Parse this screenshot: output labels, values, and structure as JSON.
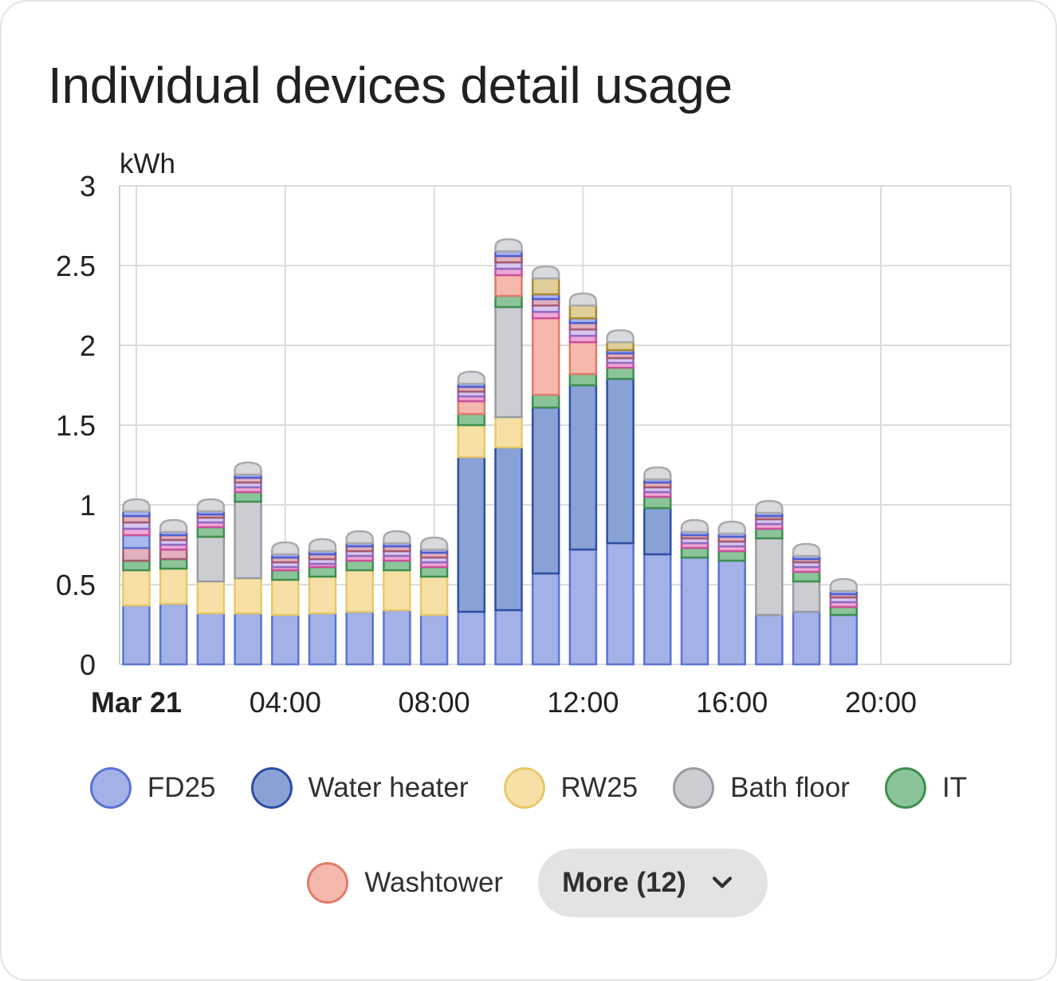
{
  "card": {
    "title": "Individual devices detail usage"
  },
  "chart_data": {
    "type": "bar",
    "stacked": true,
    "unit": "kWh",
    "ylim": [
      0,
      3
    ],
    "yticks": [
      "0",
      "0.5",
      "1",
      "1.5",
      "2",
      "2.5",
      "3"
    ],
    "xlim": [
      0,
      24
    ],
    "xticks": [
      {
        "hour": 0,
        "label": "Mar 21",
        "bold": true
      },
      {
        "hour": 4,
        "label": "04:00",
        "bold": false
      },
      {
        "hour": 8,
        "label": "08:00",
        "bold": false
      },
      {
        "hour": 12,
        "label": "12:00",
        "bold": false
      },
      {
        "hour": 16,
        "label": "16:00",
        "bold": false
      },
      {
        "hour": 20,
        "label": "20:00",
        "bold": false
      }
    ],
    "grid": true,
    "categories": [
      "00:00",
      "01:00",
      "02:00",
      "03:00",
      "04:00",
      "05:00",
      "06:00",
      "07:00",
      "08:00",
      "09:00",
      "10:00",
      "11:00",
      "12:00",
      "13:00",
      "14:00",
      "15:00",
      "16:00",
      "17:00",
      "18:00",
      "19:00"
    ],
    "series": [
      {
        "name": "FD25",
        "fill": "#a3b1e6",
        "stroke": "#5b73d4",
        "values": [
          0.37,
          0.38,
          0.32,
          0.32,
          0.31,
          0.32,
          0.33,
          0.34,
          0.31,
          0.33,
          0.34,
          0.57,
          0.72,
          0.76,
          0.69,
          0.67,
          0.65,
          0.31,
          0.33,
          0.31
        ]
      },
      {
        "name": "Water heater",
        "fill": "#88a2d6",
        "stroke": "#2f4ea3",
        "values": [
          0,
          0,
          0,
          0,
          0,
          0,
          0,
          0,
          0,
          0.97,
          1.02,
          1.04,
          1.03,
          1.03,
          0.29,
          0,
          0,
          0,
          0,
          0
        ]
      },
      {
        "name": "RW25",
        "fill": "#f6e0a6",
        "stroke": "#e8c86a",
        "values": [
          0.22,
          0.22,
          0.2,
          0.22,
          0.22,
          0.23,
          0.26,
          0.25,
          0.24,
          0.2,
          0.19,
          0,
          0,
          0,
          0,
          0,
          0,
          0,
          0,
          0
        ]
      },
      {
        "name": "Bath floor",
        "fill": "#cbcdd2",
        "stroke": "#9a9ca1",
        "values": [
          0,
          0,
          0.28,
          0.48,
          0,
          0,
          0,
          0,
          0,
          0,
          0.69,
          0,
          0,
          0,
          0,
          0,
          0,
          0.48,
          0.19,
          0
        ]
      },
      {
        "name": "IT",
        "fill": "#8cc49a",
        "stroke": "#3f8f4f",
        "values": [
          0.06,
          0.06,
          0.06,
          0.06,
          0.06,
          0.06,
          0.06,
          0.06,
          0.06,
          0.07,
          0.07,
          0.08,
          0.07,
          0.07,
          0.07,
          0.06,
          0.06,
          0.06,
          0.06,
          0.05
        ]
      },
      {
        "name": "Washtower",
        "fill": "#f5b8ad",
        "stroke": "#e07b6a",
        "values": [
          0,
          0,
          0,
          0,
          0,
          0,
          0,
          0,
          0,
          0.08,
          0.13,
          0.48,
          0.2,
          0,
          0,
          0,
          0,
          0,
          0,
          0
        ]
      }
    ],
    "others": {
      "fills": [
        "#f0a8d8",
        "#d9c6ef",
        "#e2b0be",
        "#a9b2ee",
        "#e0cf98"
      ],
      "strokes": [
        "#c9509a",
        "#8f6bbf",
        "#a35b6f",
        "#4c5fd0",
        "#a88a2e"
      ],
      "values": [
        [
          0.04,
          0.04,
          0.04,
          0.03,
          0
        ],
        [
          0.03,
          0.03,
          0.03,
          0.02,
          0
        ],
        [
          0.03,
          0.03,
          0.02,
          0.02,
          0
        ],
        [
          0.03,
          0.03,
          0.03,
          0.02,
          0
        ],
        [
          0.02,
          0.03,
          0.03,
          0.02,
          0
        ],
        [
          0.02,
          0.03,
          0.03,
          0.02,
          0
        ],
        [
          0.03,
          0.03,
          0.03,
          0.02,
          0
        ],
        [
          0.03,
          0.03,
          0.03,
          0.02,
          0
        ],
        [
          0.03,
          0.03,
          0.03,
          0.02,
          0
        ],
        [
          0.03,
          0.03,
          0.03,
          0.02,
          0
        ],
        [
          0.04,
          0.04,
          0.04,
          0.03,
          0
        ],
        [
          0.04,
          0.04,
          0.04,
          0.03,
          0.1
        ],
        [
          0.04,
          0.04,
          0.04,
          0.03,
          0.08
        ],
        [
          0.03,
          0.03,
          0.03,
          0.02,
          0.05
        ],
        [
          0.03,
          0.03,
          0.03,
          0.02,
          0
        ],
        [
          0.03,
          0.03,
          0.02,
          0.02,
          0
        ],
        [
          0.03,
          0.03,
          0.03,
          0.02,
          0
        ],
        [
          0.03,
          0.03,
          0.02,
          0.02,
          0
        ],
        [
          0.03,
          0.03,
          0.02,
          0.02,
          0
        ],
        [
          0.03,
          0.03,
          0.02,
          0.02,
          0
        ]
      ],
      "extra": [
        0.08,
        0.06,
        0,
        0,
        0,
        0,
        0,
        0,
        0,
        0,
        0,
        0,
        0,
        0,
        0,
        0,
        0,
        0,
        0,
        0
      ],
      "extra_fill": "#e2b0be",
      "extra_stroke": "#a35b6f",
      "extra2": [
        0.08,
        0,
        0,
        0,
        0,
        0,
        0,
        0,
        0,
        0,
        0,
        0,
        0,
        0,
        0,
        0,
        0,
        0,
        0,
        0
      ],
      "extra2_fill": "#a9b8ee",
      "extra2_stroke": "#5b73d4",
      "cap_fill": "#d8d9dc",
      "cap_stroke": "#a9aaad"
    }
  },
  "legend": {
    "items": [
      {
        "label": "FD25",
        "fill": "#a3b1e6",
        "stroke": "#5b73d4"
      },
      {
        "label": "Water heater",
        "fill": "#88a2d6",
        "stroke": "#2f4ea3"
      },
      {
        "label": "RW25",
        "fill": "#f6e0a6",
        "stroke": "#e8c86a"
      },
      {
        "label": "Bath floor",
        "fill": "#cbcdd2",
        "stroke": "#9a9ca1"
      },
      {
        "label": "IT",
        "fill": "#8cc49a",
        "stroke": "#3f8f4f"
      },
      {
        "label": "Washtower",
        "fill": "#f5b8ad",
        "stroke": "#e07b6a"
      }
    ],
    "more_label": "More (12)",
    "more_icon": "chevron-down-icon"
  }
}
